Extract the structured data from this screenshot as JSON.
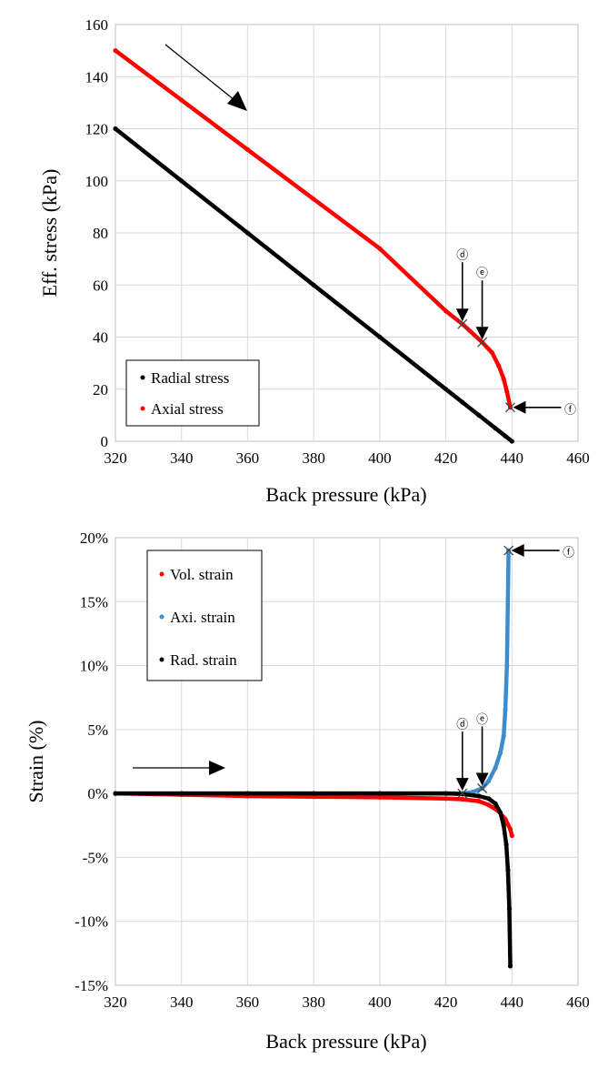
{
  "chart_data": [
    {
      "type": "scatter",
      "title": "",
      "xlabel": "Back pressure (kPa)",
      "ylabel": "Eff. stress (kPa)",
      "xlim": [
        320,
        460
      ],
      "ylim": [
        0,
        160
      ],
      "x_ticks": [
        "320",
        "340",
        "360",
        "380",
        "400",
        "420",
        "440",
        "460"
      ],
      "y_ticks": [
        "0",
        "20",
        "40",
        "60",
        "80",
        "100",
        "120",
        "140",
        "160"
      ],
      "grid": true,
      "legend_position": "bottom-left",
      "series": [
        {
          "name": "Radial stress",
          "color": "#000000",
          "x": [
            320,
            340,
            360,
            380,
            400,
            420,
            425,
            430,
            435,
            438,
            440
          ],
          "y": [
            120,
            100,
            80,
            60,
            40,
            20,
            15,
            10,
            5,
            2,
            0
          ]
        },
        {
          "name": "Axial stress",
          "color": "#ff0000",
          "x": [
            320,
            340,
            360,
            380,
            400,
            420,
            425,
            431,
            434,
            436,
            437.5,
            438.5,
            439.5
          ],
          "y": [
            150,
            131,
            112,
            93,
            74,
            50,
            45,
            38,
            34,
            29,
            24,
            19,
            13
          ]
        }
      ],
      "markers": [
        {
          "label": "ⓓ",
          "x": 425,
          "y": 45
        },
        {
          "label": "ⓔ",
          "x": 431,
          "y": 38
        },
        {
          "label": "ⓕ",
          "x": 439.5,
          "y": 13
        }
      ]
    },
    {
      "type": "scatter",
      "title": "",
      "xlabel": "Back pressure (kPa)",
      "ylabel": "Strain (%)",
      "xlim": [
        320,
        460
      ],
      "ylim": [
        -15,
        20
      ],
      "x_ticks": [
        "320",
        "340",
        "360",
        "380",
        "400",
        "420",
        "440",
        "460"
      ],
      "y_ticks": [
        "-15%",
        "-10%",
        "-5%",
        "0%",
        "5%",
        "10%",
        "15%",
        "20%"
      ],
      "grid": true,
      "legend_position": "top-left",
      "series": [
        {
          "name": "Vol. strain",
          "color": "#ff0000",
          "x": [
            320,
            340,
            360,
            380,
            400,
            420,
            425,
            430,
            433,
            436,
            438,
            439.5,
            440
          ],
          "y": [
            0,
            -0.1,
            -0.2,
            -0.25,
            -0.3,
            -0.4,
            -0.45,
            -0.6,
            -0.9,
            -1.4,
            -2.0,
            -2.8,
            -3.3
          ]
        },
        {
          "name": "Axi. strain",
          "color": "#3c8dd0",
          "x": [
            320,
            340,
            360,
            380,
            400,
            420,
            425,
            428,
            431,
            433,
            435,
            436.5,
            437.5,
            438,
            438.5,
            439
          ],
          "y": [
            0,
            0,
            0,
            0,
            0,
            0,
            0,
            0.1,
            0.4,
            1.0,
            2.0,
            3.2,
            4.5,
            6.5,
            10,
            19
          ]
        },
        {
          "name": "Rad. strain",
          "color": "#000000",
          "x": [
            320,
            340,
            360,
            380,
            400,
            420,
            425,
            430,
            433,
            435,
            436.5,
            437.5,
            438.3,
            438.8,
            439.2,
            439.5
          ],
          "y": [
            0,
            0,
            0,
            0,
            0,
            0,
            -0.05,
            -0.2,
            -0.4,
            -0.8,
            -1.5,
            -2.5,
            -4.0,
            -6.0,
            -9.0,
            -13.5
          ]
        }
      ],
      "markers": [
        {
          "label": "ⓓ",
          "x": 425,
          "y": 0
        },
        {
          "label": "ⓔ",
          "x": 431,
          "y": 0.4
        },
        {
          "label": "ⓕ",
          "x": 439,
          "y": 19
        }
      ]
    }
  ]
}
